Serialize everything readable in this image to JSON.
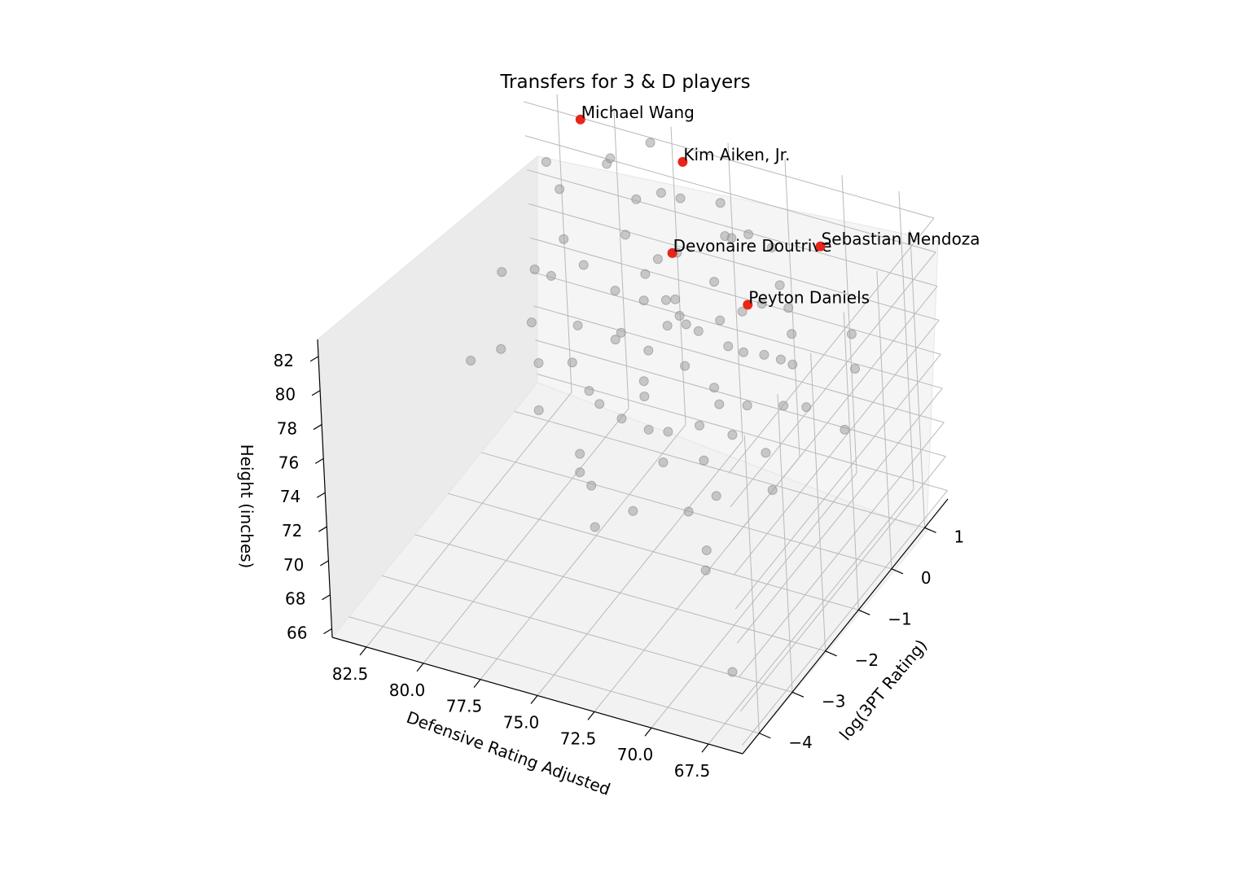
{
  "chart_data": {
    "type": "scatter",
    "projection": "3d",
    "title": "Transfers for 3 & D players",
    "xlabel": "Defensive Rating Adjusted",
    "ylabel": "log(3PT Rating)",
    "zlabel": "Height (inches)",
    "xlim": [
      66,
      84
    ],
    "ylim": [
      -4.5,
      1.7
    ],
    "zlim": [
      65.5,
      83
    ],
    "x_ticks": [
      "82.5",
      "80.0",
      "77.5",
      "75.0",
      "72.5",
      "70.0",
      "67.5"
    ],
    "x_tick_values": [
      82.5,
      80.0,
      77.5,
      75.0,
      72.5,
      70.0,
      67.5
    ],
    "y_ticks": [
      "1",
      "0",
      "−1",
      "−2",
      "−3",
      "−4"
    ],
    "y_tick_values": [
      1,
      0,
      -1,
      -2,
      -3,
      -4
    ],
    "z_ticks": [
      "82",
      "80",
      "78",
      "76",
      "74",
      "72",
      "70",
      "68",
      "66"
    ],
    "z_tick_values": [
      82,
      80,
      78,
      76,
      74,
      72,
      70,
      68,
      66
    ],
    "grid": true,
    "colors": {
      "background_points": "#a0a0a0",
      "highlight_points": "#e8251a"
    },
    "series": [
      {
        "role": "other transfers",
        "points": [
          [
            66.9,
            -4.1,
            69.0
          ],
          [
            74.5,
            -0.6,
            78.0
          ],
          [
            73.0,
            -1.2,
            80.6
          ],
          [
            77.8,
            0.8,
            80.8
          ],
          [
            79.5,
            1.1,
            81.5
          ],
          [
            76.0,
            -0.2,
            79.5
          ],
          [
            72.0,
            -0.5,
            77.5
          ],
          [
            71.5,
            0.2,
            78.5
          ],
          [
            75.5,
            0.3,
            77.0
          ],
          [
            73.5,
            -0.8,
            76.5
          ],
          [
            70.5,
            -1.0,
            75.8
          ],
          [
            74.0,
            -1.6,
            74.5
          ],
          [
            72.8,
            -2.0,
            74.0
          ],
          [
            75.8,
            -1.2,
            73.5
          ],
          [
            71.0,
            -2.5,
            73.0
          ],
          [
            69.5,
            -3.0,
            72.5
          ],
          [
            68.0,
            -2.0,
            74.2
          ],
          [
            70.0,
            -0.3,
            77.0
          ],
          [
            77.0,
            -0.5,
            76.0
          ],
          [
            76.5,
            0.5,
            78.5
          ],
          [
            78.5,
            -0.8,
            74.8
          ],
          [
            74.8,
            -2.8,
            73.8
          ],
          [
            73.2,
            1.0,
            80.0
          ],
          [
            72.5,
            1.2,
            79.0
          ],
          [
            71.8,
            -0.2,
            76.5
          ],
          [
            70.8,
            0.5,
            77.8
          ],
          [
            69.0,
            -1.5,
            74.8
          ],
          [
            68.5,
            -0.6,
            75.5
          ],
          [
            67.5,
            0.2,
            76.2
          ],
          [
            67.0,
            -0.5,
            74.5
          ],
          [
            78.0,
            0.2,
            76.8
          ],
          [
            79.0,
            -1.5,
            73.5
          ],
          [
            80.0,
            -0.8,
            74.2
          ],
          [
            81.0,
            -0.3,
            75.0
          ],
          [
            82.0,
            0.5,
            75.8
          ],
          [
            79.5,
            0.3,
            77.5
          ],
          [
            76.8,
            -1.8,
            72.5
          ],
          [
            75.2,
            -0.9,
            75.2
          ],
          [
            74.2,
            0.6,
            77.8
          ],
          [
            73.6,
            -0.3,
            77.3
          ],
          [
            72.2,
            -1.3,
            74.7
          ],
          [
            71.3,
            -1.8,
            74.2
          ],
          [
            70.2,
            -2.2,
            73.5
          ],
          [
            69.2,
            -0.8,
            75.8
          ],
          [
            77.5,
            -1.0,
            74.0
          ],
          [
            78.2,
            0.7,
            78.8
          ],
          [
            80.5,
            0.0,
            77.2
          ],
          [
            81.5,
            1.0,
            79.5
          ],
          [
            75.0,
            1.4,
            80.2
          ],
          [
            73.8,
            0.9,
            79.8
          ],
          [
            76.3,
            1.1,
            80.7
          ],
          [
            74.6,
            0.0,
            76.6
          ],
          [
            72.7,
            0.4,
            77.1
          ],
          [
            71.2,
            0.0,
            76.1
          ],
          [
            70.6,
            -1.4,
            75.0
          ],
          [
            75.9,
            -2.4,
            73.2
          ],
          [
            74.1,
            -3.2,
            72.6
          ],
          [
            73.0,
            -2.8,
            73.0
          ],
          [
            68.8,
            -3.5,
            72.8
          ],
          [
            77.2,
            -0.2,
            75.6
          ],
          [
            78.8,
            -0.4,
            75.9
          ],
          [
            76.1,
            0.8,
            78.3
          ],
          [
            75.4,
            -0.6,
            76.2
          ],
          [
            73.4,
            0.2,
            76.8
          ],
          [
            72.4,
            -0.7,
            75.4
          ],
          [
            71.6,
            0.8,
            78.1
          ],
          [
            70.4,
            0.3,
            76.9
          ],
          [
            79.8,
            1.4,
            81.0
          ],
          [
            78.3,
            1.6,
            82.0
          ],
          [
            77.3,
            1.2,
            80.4
          ],
          [
            80.8,
            0.6,
            77.8
          ],
          [
            82.5,
            1.3,
            80.0
          ],
          [
            74.9,
            -1.1,
            74.9
          ],
          [
            73.3,
            -1.5,
            74.4
          ],
          [
            71.9,
            -0.9,
            75.1
          ],
          [
            76.6,
            -1.3,
            74.3
          ],
          [
            75.6,
            0.1,
            77.4
          ],
          [
            74.4,
            1.1,
            79.2
          ],
          [
            69.8,
            -0.1,
            76.3
          ],
          [
            68.2,
            0.6,
            77.0
          ],
          [
            81.8,
            -0.7,
            74.1
          ],
          [
            83.0,
            0.2,
            76.0
          ],
          [
            82.7,
            -1.0,
            73.8
          ],
          [
            76.9,
            0.3,
            76.4
          ]
        ]
      },
      {
        "role": "highlighted players",
        "points": [
          {
            "label": "Michael Wang",
            "x": 81.2,
            "y": 1.5,
            "z": 82.5
          },
          {
            "label": "Kim Aiken, Jr.",
            "x": 76.9,
            "y": 1.6,
            "z": 81.4
          },
          {
            "label": "Devonaire Doutrive",
            "x": 76.0,
            "y": 0.6,
            "z": 78.8
          },
          {
            "label": "Sebastian Mendoza",
            "x": 70.8,
            "y": 1.5,
            "z": 79.0
          },
          {
            "label": "Peyton Daniels",
            "x": 72.6,
            "y": 0.5,
            "z": 77.3
          }
        ]
      }
    ]
  }
}
